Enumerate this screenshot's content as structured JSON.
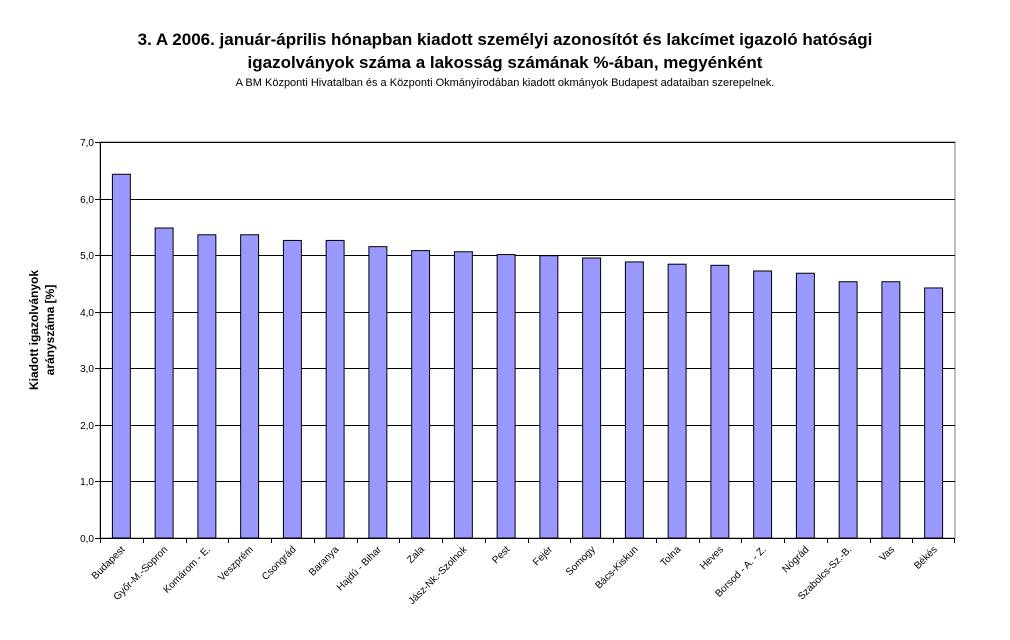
{
  "chart_data": {
    "type": "bar",
    "title_lines": [
      "3. A 2006. január-április hónapban kiadott személyi azonosítót és lakcímet igazoló hatósági",
      "igazolványok száma a lakosság  számának %-ában, megyénként"
    ],
    "subtitle": "A BM Központi Hivatalban és a Központi Okmányirodában kiadott okmányok Budapest adataiban szerepelnek.",
    "ylabel_lines": [
      "Kiadott igazolványok",
      "arányszáma [%]"
    ],
    "xlabel": "",
    "categories": [
      "Budapest",
      "Győr-M.-Sopron",
      "Komárom - E.",
      "Veszprém",
      "Csongrád",
      "Baranya",
      "Hajdú - Bihar",
      "Zala",
      "Jász-Nk.-Szolnok",
      "Pest",
      "Fejér",
      "Somogy",
      "Bács-Kiskun",
      "Tolna",
      "Heves",
      "Borsod - A. - Z.",
      "Nógrád",
      "Szabolcs-Sz.-B.",
      "Vas",
      "Békés"
    ],
    "values": [
      6.43,
      5.48,
      5.36,
      5.36,
      5.26,
      5.26,
      5.15,
      5.08,
      5.06,
      5.01,
      4.99,
      4.95,
      4.88,
      4.84,
      4.82,
      4.72,
      4.68,
      4.53,
      4.53,
      4.42
    ],
    "ylim": [
      0,
      7
    ],
    "yticks": [
      "0,0",
      "1,0",
      "2,0",
      "3,0",
      "4,0",
      "5,0",
      "6,0",
      "7,0"
    ],
    "grid": true,
    "legend": "none",
    "colors": {
      "bar": "#9999ff",
      "bar_stroke": "#000000",
      "plot_bg": "#ffffff",
      "grid": "#000000"
    }
  }
}
